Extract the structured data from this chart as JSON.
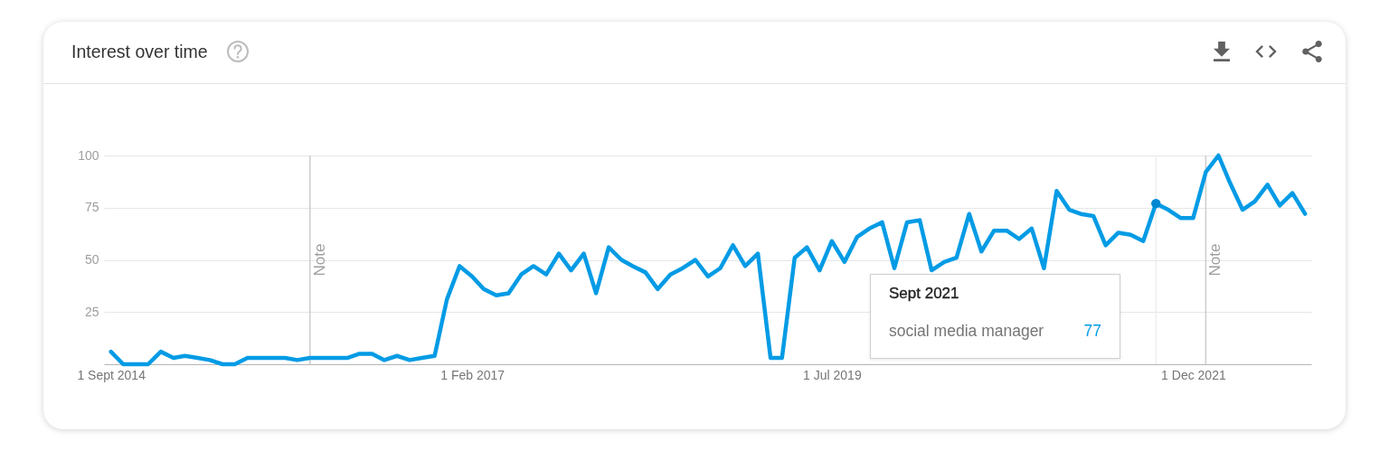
{
  "chart_data": {
    "type": "line",
    "title": "Interest over time",
    "x": [
      "2014-09",
      "2014-10",
      "2014-11",
      "2014-12",
      "2015-01",
      "2015-02",
      "2015-03",
      "2015-04",
      "2015-05",
      "2015-06",
      "2015-07",
      "2015-08",
      "2015-09",
      "2015-10",
      "2015-11",
      "2015-12",
      "2016-01",
      "2016-02",
      "2016-03",
      "2016-04",
      "2016-05",
      "2016-06",
      "2016-07",
      "2016-08",
      "2016-09",
      "2016-10",
      "2016-11",
      "2016-12",
      "2017-01",
      "2017-02",
      "2017-03",
      "2017-04",
      "2017-05",
      "2017-06",
      "2017-07",
      "2017-08",
      "2017-09",
      "2017-10",
      "2017-11",
      "2017-12",
      "2018-01",
      "2018-02",
      "2018-03",
      "2018-04",
      "2018-05",
      "2018-06",
      "2018-07",
      "2018-08",
      "2018-09",
      "2018-10",
      "2018-11",
      "2018-12",
      "2019-01",
      "2019-02",
      "2019-03",
      "2019-04",
      "2019-05",
      "2019-06",
      "2019-07",
      "2019-08",
      "2019-09",
      "2019-10",
      "2019-11",
      "2019-12",
      "2020-01",
      "2020-02",
      "2020-03",
      "2020-04",
      "2020-05",
      "2020-06",
      "2020-07",
      "2020-08",
      "2020-09",
      "2020-10",
      "2020-11",
      "2020-12",
      "2021-01",
      "2021-02",
      "2021-03",
      "2021-04",
      "2021-05",
      "2021-06",
      "2021-07",
      "2021-08",
      "2021-09",
      "2021-10",
      "2021-11",
      "2021-12",
      "2022-01",
      "2022-02",
      "2022-03",
      "2022-04",
      "2022-05",
      "2022-06",
      "2022-07",
      "2022-08",
      "2022-09"
    ],
    "series": [
      {
        "color": "#039be5",
        "values": [
          6,
          0,
          0,
          0,
          6,
          3,
          4,
          3,
          2,
          0,
          0,
          3,
          3,
          3,
          3,
          2,
          3,
          3,
          3,
          3,
          5,
          5,
          2,
          4,
          2,
          3,
          4,
          31,
          47,
          42,
          36,
          33,
          34,
          43,
          47,
          43,
          53,
          45,
          53,
          34,
          56,
          50,
          47,
          44,
          36,
          43,
          46,
          50,
          42,
          46,
          57,
          47,
          53,
          3,
          3,
          51,
          56,
          45,
          59,
          49,
          61,
          65,
          68,
          46,
          68,
          69,
          45,
          49,
          51,
          72,
          54,
          64,
          64,
          60,
          65,
          46,
          83,
          74,
          72,
          71,
          57,
          63,
          62,
          59,
          77,
          74,
          70,
          70,
          92,
          100,
          87,
          74,
          78,
          86,
          76,
          82,
          72
        ]
      },
      {
        "type": "scatter",
        "color": "#0288d1",
        "x": [
          "2021-09"
        ],
        "values": [
          77
        ]
      }
    ],
    "xlim": [
      "2014-08-15",
      "2022-09-16"
    ],
    "xticks": [
      {
        "value": "2014-09-01",
        "label": "1 Sept 2014"
      },
      {
        "value": "2017-02-01",
        "label": "1 Feb 2017"
      },
      {
        "value": "2019-07-01",
        "label": "1 Jul 2019"
      },
      {
        "value": "2021-12-01",
        "label": "1 Dec 2021"
      }
    ],
    "ylim": [
      0,
      100
    ],
    "yticks": [
      25,
      50,
      75,
      100
    ],
    "grid": "y",
    "line_style": "solid",
    "ref_lines": [
      {
        "axis": "x",
        "value": "2016-01-01",
        "label": "Note",
        "color": "#cccccc"
      },
      {
        "axis": "x",
        "value": "2021-09-01",
        "color": "#eeeeee"
      },
      {
        "axis": "x",
        "value": "2022-01-01",
        "label": "Note",
        "color": "#cccccc"
      }
    ],
    "annotations": [
      "Sept 2021",
      "social media manager",
      "77"
    ]
  }
}
